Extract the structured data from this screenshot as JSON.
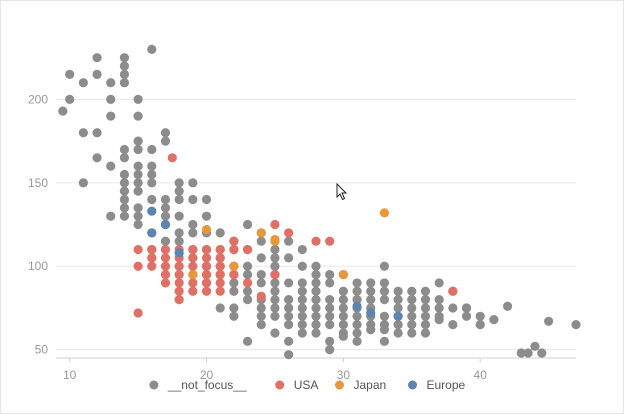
{
  "chart_data": {
    "type": "scatter",
    "xlim": [
      9,
      47
    ],
    "ylim": [
      45,
      235
    ],
    "x_ticks": [
      10,
      20,
      30,
      40
    ],
    "y_ticks": [
      50,
      100,
      150,
      200
    ],
    "grid": "horizontal",
    "legend_position": "bottom",
    "series": [
      {
        "name": "__not_focus__",
        "color": "#8c8c8c",
        "points": [
          [
            9.5,
            193
          ],
          [
            10,
            200
          ],
          [
            10,
            215
          ],
          [
            11,
            210
          ],
          [
            11,
            180
          ],
          [
            11,
            150
          ],
          [
            12,
            225
          ],
          [
            12,
            180
          ],
          [
            12,
            165
          ],
          [
            12,
            215
          ],
          [
            13,
            200
          ],
          [
            13,
            210
          ],
          [
            13,
            190
          ],
          [
            13,
            160
          ],
          [
            14,
            215
          ],
          [
            14,
            220
          ],
          [
            14,
            225
          ],
          [
            14,
            210
          ],
          [
            14,
            170
          ],
          [
            14,
            165
          ],
          [
            14,
            155
          ],
          [
            14,
            150
          ],
          [
            14,
            145
          ],
          [
            14,
            140
          ],
          [
            14,
            135
          ],
          [
            15,
            200
          ],
          [
            15,
            190
          ],
          [
            15,
            175
          ],
          [
            15,
            170
          ],
          [
            15,
            160
          ],
          [
            15,
            155
          ],
          [
            15,
            150
          ],
          [
            15,
            145
          ],
          [
            15,
            135
          ],
          [
            15,
            130
          ],
          [
            16,
            230
          ],
          [
            16,
            170
          ],
          [
            16,
            160
          ],
          [
            16,
            155
          ],
          [
            16,
            150
          ],
          [
            16,
            140
          ],
          [
            16,
            120
          ],
          [
            16,
            110
          ],
          [
            16,
            105
          ],
          [
            17,
            180
          ],
          [
            17,
            175
          ],
          [
            17,
            140
          ],
          [
            17,
            135
          ],
          [
            17,
            130
          ],
          [
            17,
            115
          ],
          [
            18,
            150
          ],
          [
            18,
            145
          ],
          [
            18,
            140
          ],
          [
            18,
            130
          ],
          [
            18,
            115
          ],
          [
            19,
            150
          ],
          [
            19,
            140
          ],
          [
            19,
            120
          ],
          [
            19,
            110
          ],
          [
            19,
            105
          ],
          [
            20,
            140
          ],
          [
            20,
            120
          ],
          [
            20,
            110
          ],
          [
            20,
            100
          ],
          [
            20,
            95
          ],
          [
            20,
            90
          ],
          [
            21,
            110
          ],
          [
            21,
            105
          ],
          [
            21,
            100
          ],
          [
            21,
            95
          ],
          [
            22,
            110
          ],
          [
            22,
            100
          ],
          [
            22,
            95
          ],
          [
            22,
            90
          ],
          [
            22,
            85
          ],
          [
            22,
            75
          ],
          [
            23,
            125
          ],
          [
            23,
            100
          ],
          [
            23,
            95
          ],
          [
            23,
            90
          ],
          [
            23,
            85
          ],
          [
            23,
            80
          ],
          [
            24,
            120
          ],
          [
            24,
            105
          ],
          [
            24,
            95
          ],
          [
            24,
            90
          ],
          [
            24,
            80
          ],
          [
            24,
            75
          ],
          [
            24,
            70
          ],
          [
            25,
            110
          ],
          [
            25,
            100
          ],
          [
            25,
            95
          ],
          [
            25,
            90
          ],
          [
            25,
            85
          ],
          [
            25,
            80
          ],
          [
            25,
            75
          ],
          [
            25,
            70
          ],
          [
            26,
            115
          ],
          [
            26,
            90
          ],
          [
            26,
            80
          ],
          [
            26,
            75
          ],
          [
            26,
            70
          ],
          [
            26,
            65
          ],
          [
            26,
            55
          ],
          [
            27,
            110
          ],
          [
            27,
            90
          ],
          [
            27,
            85
          ],
          [
            27,
            80
          ],
          [
            27,
            75
          ],
          [
            27,
            70
          ],
          [
            27,
            65
          ],
          [
            28,
            95
          ],
          [
            28,
            90
          ],
          [
            28,
            85
          ],
          [
            28,
            80
          ],
          [
            28,
            75
          ],
          [
            28,
            70
          ],
          [
            28,
            65
          ],
          [
            29,
            90
          ],
          [
            29,
            80
          ],
          [
            29,
            75
          ],
          [
            29,
            70
          ],
          [
            29,
            65
          ],
          [
            29,
            50
          ],
          [
            30,
            85
          ],
          [
            30,
            80
          ],
          [
            30,
            75
          ],
          [
            30,
            70
          ],
          [
            30,
            65
          ],
          [
            30,
            60
          ],
          [
            31,
            85
          ],
          [
            31,
            80
          ],
          [
            31,
            75
          ],
          [
            31,
            70
          ],
          [
            31,
            65
          ],
          [
            31,
            60
          ],
          [
            32,
            90
          ],
          [
            32,
            80
          ],
          [
            32,
            75
          ],
          [
            32,
            70
          ],
          [
            32,
            65
          ],
          [
            33,
            100
          ],
          [
            33,
            85
          ],
          [
            33,
            80
          ],
          [
            33,
            70
          ],
          [
            33,
            65
          ],
          [
            33,
            55
          ],
          [
            34,
            85
          ],
          [
            34,
            75
          ],
          [
            34,
            70
          ],
          [
            34,
            65
          ],
          [
            35,
            85
          ],
          [
            35,
            75
          ],
          [
            35,
            70
          ],
          [
            35,
            65
          ],
          [
            36,
            85
          ],
          [
            36,
            75
          ],
          [
            36,
            70
          ],
          [
            36,
            65
          ],
          [
            37,
            90
          ],
          [
            37,
            75
          ],
          [
            37,
            70
          ],
          [
            37,
            68
          ],
          [
            38,
            85
          ],
          [
            38,
            65
          ],
          [
            39,
            75
          ],
          [
            39,
            70
          ],
          [
            40,
            70
          ],
          [
            41,
            68
          ],
          [
            42,
            76
          ],
          [
            43,
            48
          ],
          [
            43.5,
            48
          ],
          [
            44,
            52
          ],
          [
            44.5,
            48
          ],
          [
            45,
            67
          ],
          [
            47,
            65
          ],
          [
            13,
            130
          ],
          [
            14,
            130
          ],
          [
            15,
            125
          ],
          [
            17,
            125
          ],
          [
            18,
            120
          ],
          [
            19,
            125
          ],
          [
            20,
            130
          ],
          [
            21,
            120
          ],
          [
            22,
            115
          ],
          [
            23,
            110
          ],
          [
            24,
            115
          ],
          [
            25,
            105
          ],
          [
            26,
            105
          ],
          [
            27,
            100
          ],
          [
            28,
            100
          ],
          [
            29,
            95
          ],
          [
            30,
            95
          ],
          [
            31,
            90
          ],
          [
            32,
            85
          ],
          [
            33,
            90
          ],
          [
            34,
            80
          ],
          [
            35,
            80
          ],
          [
            36,
            80
          ],
          [
            37,
            80
          ],
          [
            38,
            75
          ],
          [
            39,
            75
          ],
          [
            40,
            65
          ],
          [
            36,
            60
          ],
          [
            35,
            60
          ],
          [
            34,
            60
          ],
          [
            33,
            62
          ],
          [
            32,
            62
          ],
          [
            31,
            55
          ],
          [
            30,
            58
          ],
          [
            29,
            55
          ],
          [
            28,
            60
          ],
          [
            27,
            60
          ],
          [
            26,
            47
          ],
          [
            25,
            60
          ],
          [
            24,
            65
          ],
          [
            23,
            55
          ],
          [
            22,
            70
          ],
          [
            21,
            75
          ]
        ]
      },
      {
        "name": "USA",
        "color": "#e07065",
        "points": [
          [
            15,
            110
          ],
          [
            15,
            100
          ],
          [
            15,
            72
          ],
          [
            16,
            110
          ],
          [
            16,
            105
          ],
          [
            16,
            100
          ],
          [
            17,
            110
          ],
          [
            17,
            105
          ],
          [
            17,
            100
          ],
          [
            17,
            95
          ],
          [
            17,
            90
          ],
          [
            17.5,
            165
          ],
          [
            18,
            110
          ],
          [
            18,
            105
          ],
          [
            18,
            100
          ],
          [
            18,
            95
          ],
          [
            18,
            90
          ],
          [
            18,
            85
          ],
          [
            18,
            80
          ],
          [
            19,
            110
          ],
          [
            19,
            105
          ],
          [
            19,
            100
          ],
          [
            19,
            95
          ],
          [
            19,
            90
          ],
          [
            19,
            85
          ],
          [
            20,
            110
          ],
          [
            20,
            105
          ],
          [
            20,
            100
          ],
          [
            20,
            95
          ],
          [
            20,
            90
          ],
          [
            20,
            85
          ],
          [
            21,
            110
          ],
          [
            21,
            105
          ],
          [
            21,
            100
          ],
          [
            21,
            95
          ],
          [
            21,
            90
          ],
          [
            21,
            85
          ],
          [
            22,
            115
          ],
          [
            22,
            110
          ],
          [
            22,
            100
          ],
          [
            22,
            95
          ],
          [
            23,
            110
          ],
          [
            23,
            90
          ],
          [
            24,
            82
          ],
          [
            25,
            125
          ],
          [
            25,
            95
          ],
          [
            26,
            120
          ],
          [
            28,
            115
          ],
          [
            29,
            115
          ],
          [
            38,
            85
          ]
        ]
      },
      {
        "name": "Japan",
        "color": "#e8973a",
        "points": [
          [
            19,
            95
          ],
          [
            20,
            122
          ],
          [
            22,
            100
          ],
          [
            24,
            120
          ],
          [
            25,
            115
          ],
          [
            25,
            116
          ],
          [
            33,
            132
          ],
          [
            30,
            95
          ]
        ]
      },
      {
        "name": "Europe",
        "color": "#5b84b1",
        "points": [
          [
            16,
            133
          ],
          [
            16,
            120
          ],
          [
            17,
            125
          ],
          [
            18,
            108
          ],
          [
            31,
            76
          ],
          [
            32,
            72
          ],
          [
            34,
            70
          ]
        ]
      }
    ]
  }
}
